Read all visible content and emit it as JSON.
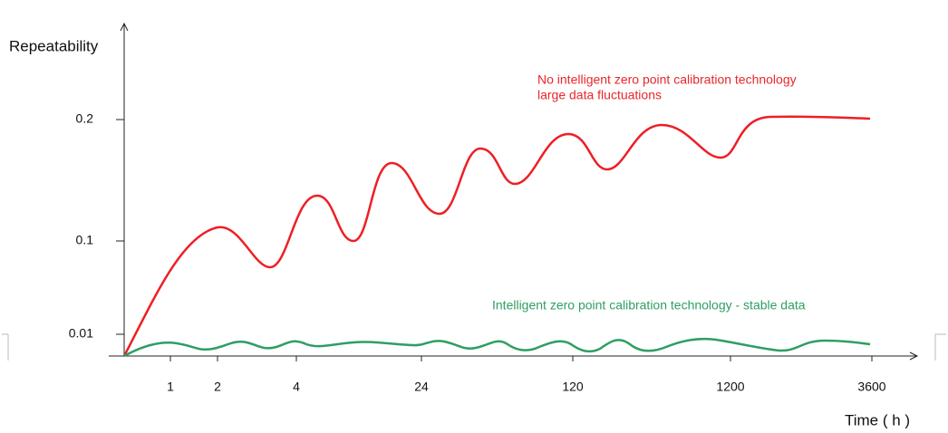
{
  "axes": {
    "y_label": "Repeatability",
    "y_ticks": [
      0.2,
      0.1,
      0.01
    ],
    "x_label": "Time ( h )",
    "x_ticks": [
      1,
      2,
      4,
      24,
      120,
      1200,
      3600
    ]
  },
  "annotations": [
    {
      "lines": [
        "No intelligent zero point calibration technology",
        "large data fluctuations"
      ]
    },
    {
      "lines": [
        "Intelligent zero point calibration technology - stable data"
      ]
    }
  ]
}
